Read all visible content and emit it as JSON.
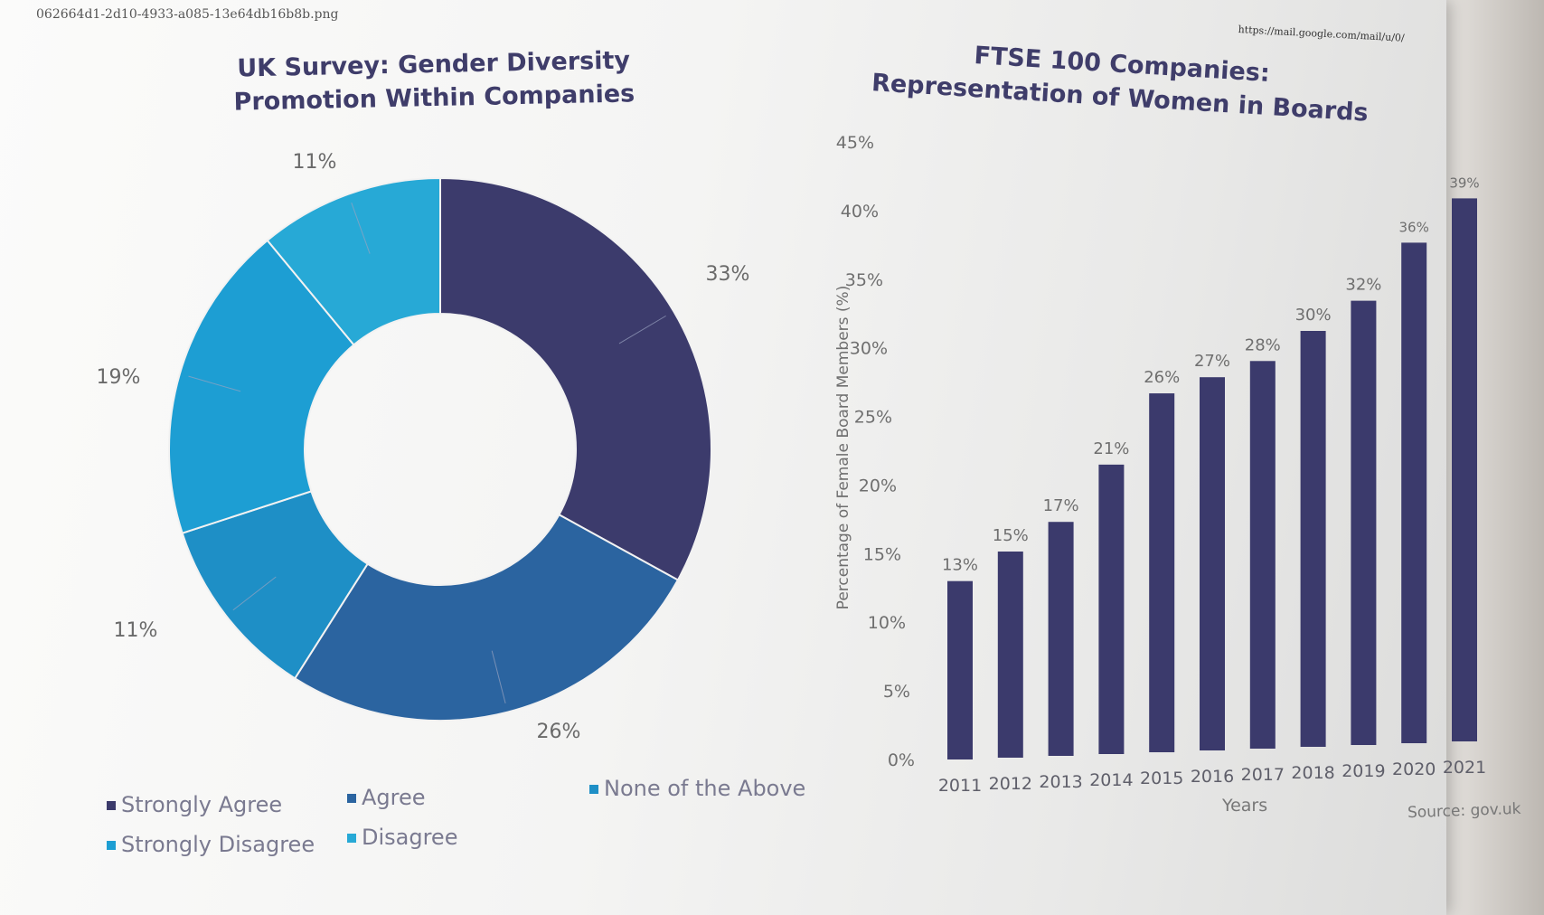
{
  "image_filename": "062664d1-2d10-4933-a085-13e64db16b8b.png",
  "url_text": "https://mail.google.com/mail/u/0/",
  "source_text": "Source: gov.uk",
  "chart_data": [
    {
      "type": "pie",
      "title": "UK Survey: Gender Diversity Promotion Within Companies",
      "categories": [
        "Strongly Agree",
        "Agree",
        "None of the Above",
        "Strongly Disagree",
        "Disagree"
      ],
      "values": [
        33,
        26,
        11,
        19,
        11
      ],
      "value_labels": [
        "33%",
        "26%",
        "11%",
        "19%",
        "11%"
      ],
      "colors": [
        "#3c3b6c",
        "#2b64a0",
        "#1e8fc6",
        "#1d9ed3",
        "#27a9d6"
      ],
      "legend": [
        "Strongly Agree",
        "Agree",
        "None of the Above",
        "Strongly Disagree",
        "Disagree"
      ],
      "legend_colors": [
        "#3c3b6c",
        "#2b64a0",
        "#1e8fc6",
        "#1d9ed3",
        "#27a9d6"
      ]
    },
    {
      "type": "bar",
      "title": "FTSE 100 Companies: Representation of Women in Boards",
      "categories": [
        "2011",
        "2012",
        "2013",
        "2014",
        "2015",
        "2016",
        "2017",
        "2018",
        "2019",
        "2020",
        "2021"
      ],
      "values": [
        13,
        15,
        17,
        21,
        26,
        27,
        28,
        30,
        32,
        36,
        39
      ],
      "value_labels": [
        "13%",
        "15%",
        "17%",
        "21%",
        "26%",
        "27%",
        "28%",
        "30%",
        "32%",
        "36%",
        "39%"
      ],
      "xlabel": "Years",
      "ylabel": "Percentage of Female Board Members (%)",
      "ylim": [
        0,
        45
      ],
      "yticks": [
        "0%",
        "5%",
        "10%",
        "15%",
        "20%",
        "25%",
        "30%",
        "35%",
        "40%",
        "45%"
      ],
      "bar_color": "#3b3a6c"
    }
  ]
}
